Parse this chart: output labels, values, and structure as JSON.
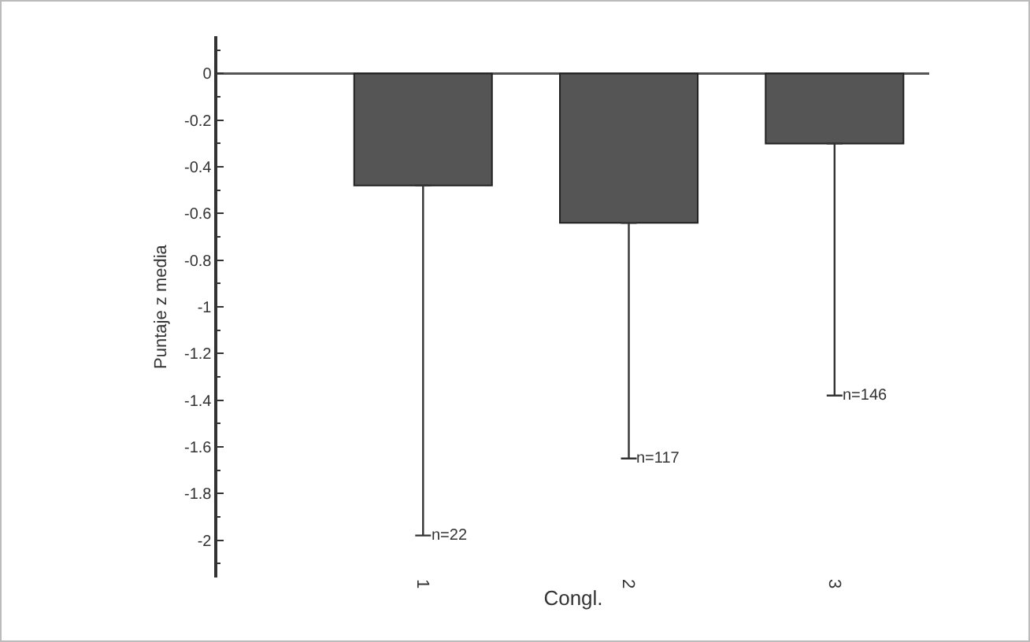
{
  "chart_data": {
    "type": "bar",
    "xlabel": "Congl.",
    "ylabel": "Puntaje z media",
    "categories": [
      "1",
      "2",
      "3"
    ],
    "values": [
      -0.48,
      -0.64,
      -0.3
    ],
    "errors": [
      [
        -1.98,
        -0.48
      ],
      [
        -1.65,
        -0.64
      ],
      [
        -1.38,
        -0.3
      ]
    ],
    "ref_lines": [
      {
        "axis": "y",
        "value": 0,
        "color": "#555555"
      }
    ],
    "color": "#555555",
    "ylim": [
      -2.16,
      0.16
    ],
    "yticks": [
      0,
      -0.2,
      -0.4,
      -0.6,
      -0.8,
      -1,
      -1.2,
      -1.4,
      -1.6,
      -1.8,
      -2
    ],
    "grid": false,
    "legend": false,
    "annotations": [
      {
        "text": "n=22",
        "x": "1",
        "y": -1.98
      },
      {
        "text": "n=117",
        "x": "2",
        "y": -1.65
      },
      {
        "text": "n=146",
        "x": "3",
        "y": -1.38
      }
    ]
  }
}
